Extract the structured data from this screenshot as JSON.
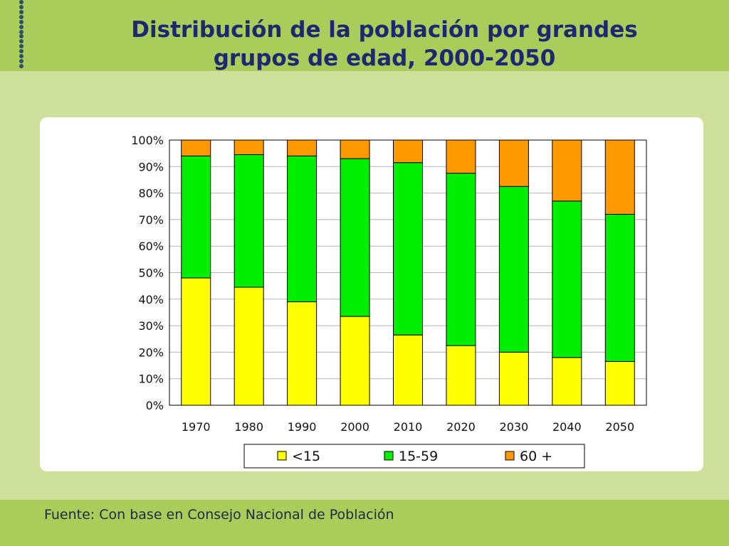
{
  "slide": {
    "title_line1": "Distribución de la población por grandes",
    "title_line2": "grupos de edad, 2000-2050",
    "source": "Fuente: Con base en Consejo Nacional de Población"
  },
  "chart_data": {
    "type": "bar",
    "stacked": true,
    "categories": [
      "1970",
      "1980",
      "1990",
      "2000",
      "2010",
      "2020",
      "2030",
      "2040",
      "2050"
    ],
    "series": [
      {
        "name": "<15",
        "color": "#ffff00",
        "values": [
          48,
          44.5,
          39,
          33.5,
          26.5,
          22.5,
          20,
          18,
          16.5
        ]
      },
      {
        "name": "15-59",
        "color": "#00ee00",
        "values": [
          46,
          50,
          55,
          59.5,
          65,
          65,
          62.5,
          59,
          55.5
        ]
      },
      {
        "name": "60 +",
        "color": "#ff9900",
        "values": [
          6,
          5.5,
          6,
          7,
          8.5,
          12.5,
          17.5,
          23,
          28
        ]
      }
    ],
    "y_ticks": [
      "0%",
      "10%",
      "20%",
      "30%",
      "40%",
      "50%",
      "60%",
      "70%",
      "80%",
      "90%",
      "100%"
    ],
    "ylim": [
      0,
      100
    ],
    "grid": true,
    "legend_position": "bottom"
  }
}
